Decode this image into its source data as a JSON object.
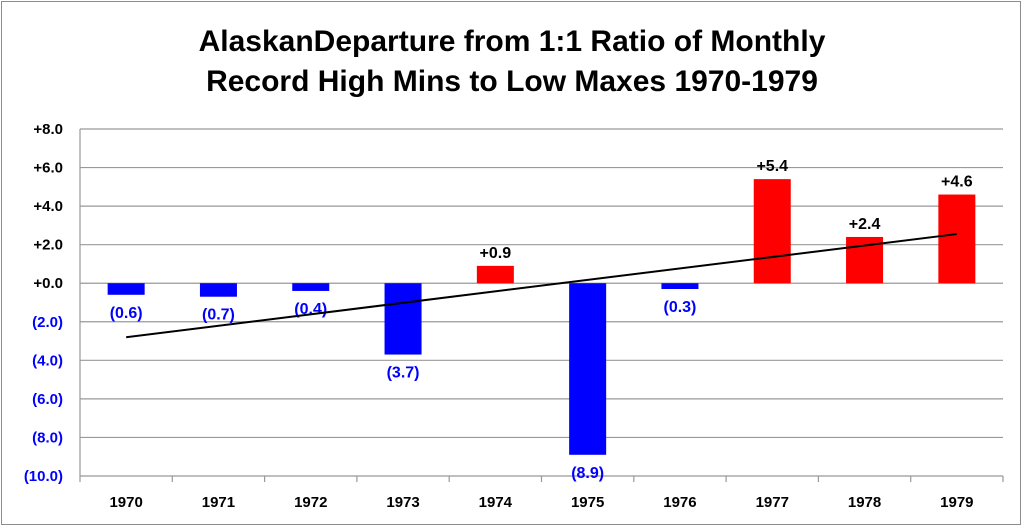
{
  "chart_data": {
    "type": "bar",
    "title": "AlaskanDeparture from 1:1 Ratio of Monthly",
    "subtitle": "Record High Mins to Low Maxes 1970-1979",
    "categories": [
      "1970",
      "1971",
      "1972",
      "1973",
      "1974",
      "1975",
      "1976",
      "1977",
      "1978",
      "1979"
    ],
    "values": [
      -0.6,
      -0.7,
      -0.4,
      -3.7,
      0.9,
      -8.9,
      -0.3,
      5.4,
      2.4,
      4.6
    ],
    "data_labels": [
      "(0.6)",
      "(0.7)",
      "(0.4)",
      "(3.7)",
      "+0.9",
      "(8.9)",
      "(0.3)",
      "+5.4",
      "+2.4",
      "+4.6"
    ],
    "ylim": [
      -10,
      8
    ],
    "yticks": [
      8,
      6,
      4,
      2,
      0,
      -2,
      -4,
      -6,
      -8,
      -10
    ],
    "ytick_labels": [
      "+8.0",
      "+6.0",
      "+4.0",
      "+2.0",
      "+0.0",
      "(2.0)",
      "(4.0)",
      "(6.0)",
      "(8.0)",
      "(10.0)"
    ],
    "trendline": {
      "start": -2.8,
      "end": 2.55
    },
    "grid": true,
    "legend": "none",
    "colors": {
      "positive": "#ff0000",
      "negative": "#0000ff",
      "positive_label": "#000000",
      "negative_label": "#0000ff",
      "trendline": "#000000",
      "grid": "#999999"
    }
  }
}
